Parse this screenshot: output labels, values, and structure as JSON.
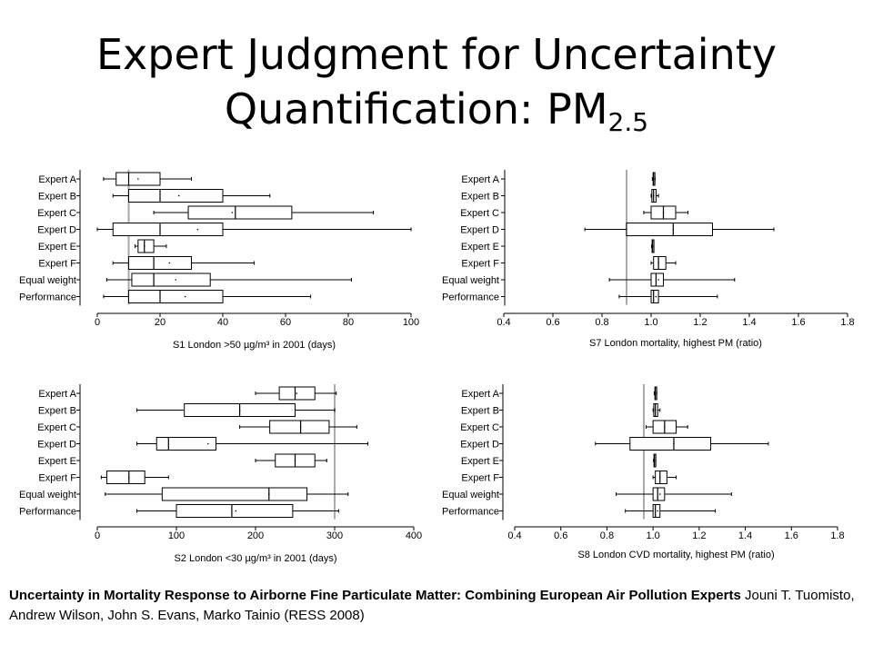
{
  "title": {
    "line1": "Expert Judgment for Uncertainty",
    "line2_main": "Quantification: PM",
    "line2_sub": "2.5"
  },
  "caption": {
    "bold": "Uncertainty in Mortality Response to Airborne Fine Particulate Matter: Combining European Air Pollution Experts",
    "normal": " Jouni T. Tuomisto, Andrew Wilson, John S. Evans, Marko Tainio (RESS 2008)"
  },
  "chart_data": [
    {
      "type": "boxplot",
      "xlabel": "S1 London >50 µg/m³ in 2001 (days)",
      "xlim": [
        0,
        100
      ],
      "ticks": [
        0,
        20,
        40,
        60,
        80,
        100
      ],
      "ref_line": 10,
      "categories": [
        "Expert A",
        "Expert B",
        "Expert C",
        "Expert D",
        "Expert E",
        "Expert F",
        "Equal weight",
        "Performance"
      ],
      "series": [
        {
          "wl": 2,
          "q1": 6,
          "med": 10,
          "q3": 20,
          "wh": 30,
          "mean": 13
        },
        {
          "wl": 5,
          "q1": 10,
          "med": 20,
          "q3": 40,
          "wh": 55,
          "mean": 26
        },
        {
          "wl": 18,
          "q1": 29,
          "med": 44,
          "q3": 62,
          "wh": 88,
          "mean": 43
        },
        {
          "wl": 0,
          "q1": 5,
          "med": 20,
          "q3": 40,
          "wh": 100,
          "mean": 32
        },
        {
          "wl": 12,
          "q1": 13,
          "med": 15,
          "q3": 18,
          "wh": 22,
          "mean": 15
        },
        {
          "wl": 5,
          "q1": 10,
          "med": 18,
          "q3": 30,
          "wh": 50,
          "mean": 23
        },
        {
          "wl": 3,
          "q1": 11,
          "med": 18,
          "q3": 36,
          "wh": 81,
          "mean": 25
        },
        {
          "wl": 2,
          "q1": 10,
          "med": 20,
          "q3": 40,
          "wh": 68,
          "mean": 28
        }
      ]
    },
    {
      "type": "boxplot",
      "xlabel": "S7 London mortality, highest PM (ratio)",
      "xlim": [
        0.4,
        1.8
      ],
      "ticks": [
        0.4,
        0.6,
        0.8,
        1.0,
        1.2,
        1.4,
        1.6,
        1.8
      ],
      "tick_labels": [
        "0.4",
        "0.6",
        "0.8",
        "1.0",
        "1.2",
        "1.4",
        "1.6",
        "1.8"
      ],
      "ref_line": 0.9,
      "categories": [
        "Expert A",
        "Expert B",
        "Expert C",
        "Expert D",
        "Expert E",
        "Expert F",
        "Equal weight",
        "Performance"
      ],
      "series": [
        {
          "wl": 1.005,
          "q1": 1.008,
          "med": 1.01,
          "q3": 1.013,
          "wh": 1.016,
          "mean": 1.01
        },
        {
          "wl": 1.0,
          "q1": 1.003,
          "med": 1.01,
          "q3": 1.02,
          "wh": 1.03,
          "mean": 1.01
        },
        {
          "wl": 0.97,
          "q1": 1.0,
          "med": 1.05,
          "q3": 1.1,
          "wh": 1.15,
          "mean": 1.05
        },
        {
          "wl": 0.73,
          "q1": 0.9,
          "med": 1.09,
          "q3": 1.25,
          "wh": 1.5,
          "mean": 1.09
        },
        {
          "wl": 1.002,
          "q1": 1.004,
          "med": 1.006,
          "q3": 1.008,
          "wh": 1.01,
          "mean": 1.006
        },
        {
          "wl": 1.0,
          "q1": 1.01,
          "med": 1.03,
          "q3": 1.06,
          "wh": 1.1,
          "mean": 1.03
        },
        {
          "wl": 0.83,
          "q1": 1.0,
          "med": 1.02,
          "q3": 1.05,
          "wh": 1.34,
          "mean": 1.03
        },
        {
          "wl": 0.87,
          "q1": 1.0,
          "med": 1.01,
          "q3": 1.03,
          "wh": 1.27,
          "mean": 1.02
        }
      ]
    },
    {
      "type": "boxplot",
      "xlabel": "S2 London <30 µg/m³ in 2001 (days)",
      "xlim": [
        0,
        400
      ],
      "ticks": [
        0,
        100,
        200,
        300,
        400
      ],
      "ref_line": 300,
      "categories": [
        "Expert A",
        "Expert B",
        "Expert C",
        "Expert D",
        "Expert E",
        "Expert F",
        "Equal weight",
        "Performance"
      ],
      "series": [
        {
          "wl": 200,
          "q1": 230,
          "med": 250,
          "q3": 275,
          "wh": 302,
          "mean": 252
        },
        {
          "wl": 50,
          "q1": 110,
          "med": 180,
          "q3": 250,
          "wh": 300,
          "mean": 180
        },
        {
          "wl": 180,
          "q1": 218,
          "med": 257,
          "q3": 293,
          "wh": 328,
          "mean": 257
        },
        {
          "wl": 50,
          "q1": 75,
          "med": 90,
          "q3": 150,
          "wh": 342,
          "mean": 140
        },
        {
          "wl": 200,
          "q1": 225,
          "med": 250,
          "q3": 275,
          "wh": 290,
          "mean": 250
        },
        {
          "wl": 5,
          "q1": 12,
          "med": 40,
          "q3": 60,
          "wh": 90,
          "mean": 40
        },
        {
          "wl": 10,
          "q1": 82,
          "med": 217,
          "q3": 265,
          "wh": 317,
          "mean": 217
        },
        {
          "wl": 50,
          "q1": 100,
          "med": 170,
          "q3": 247,
          "wh": 305,
          "mean": 175
        }
      ]
    },
    {
      "type": "boxplot",
      "xlabel": "S8 London CVD mortality, highest PM (ratio)",
      "xlim": [
        0.4,
        1.8
      ],
      "ticks": [
        0.4,
        0.6,
        0.8,
        1.0,
        1.2,
        1.4,
        1.6,
        1.8
      ],
      "tick_labels": [
        "0.4",
        "0.6",
        "0.8",
        "1.0",
        "1.2",
        "1.4",
        "1.6",
        "1.8"
      ],
      "ref_line": 0.96,
      "categories": [
        "Expert A",
        "Expert B",
        "Expert C",
        "Expert D",
        "Expert E",
        "Expert F",
        "Equal weight",
        "Performance"
      ],
      "series": [
        {
          "wl": 1.005,
          "q1": 1.008,
          "med": 1.01,
          "q3": 1.013,
          "wh": 1.016,
          "mean": 1.01
        },
        {
          "wl": 1.0,
          "q1": 1.003,
          "med": 1.01,
          "q3": 1.02,
          "wh": 1.03,
          "mean": 1.01
        },
        {
          "wl": 0.97,
          "q1": 1.0,
          "med": 1.05,
          "q3": 1.1,
          "wh": 1.15,
          "mean": 1.05
        },
        {
          "wl": 0.75,
          "q1": 0.9,
          "med": 1.09,
          "q3": 1.25,
          "wh": 1.5,
          "mean": 1.09
        },
        {
          "wl": 1.002,
          "q1": 1.004,
          "med": 1.006,
          "q3": 1.008,
          "wh": 1.01,
          "mean": 1.006
        },
        {
          "wl": 1.0,
          "q1": 1.01,
          "med": 1.03,
          "q3": 1.06,
          "wh": 1.1,
          "mean": 1.03
        },
        {
          "wl": 0.84,
          "q1": 1.0,
          "med": 1.02,
          "q3": 1.05,
          "wh": 1.34,
          "mean": 1.03
        },
        {
          "wl": 0.88,
          "q1": 1.0,
          "med": 1.01,
          "q3": 1.03,
          "wh": 1.27,
          "mean": 1.02
        }
      ]
    }
  ]
}
